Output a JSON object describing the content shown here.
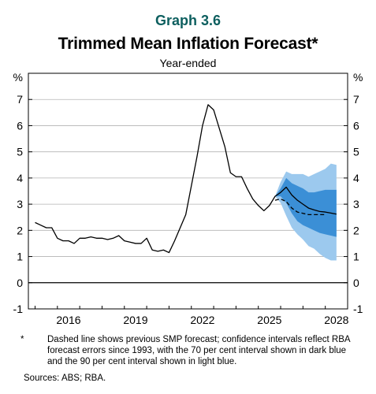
{
  "header": {
    "graph_number": "Graph 3.6",
    "title": "Trimmed Mean Inflation Forecast*",
    "subtitle": "Year-ended"
  },
  "footnote": {
    "mark": "*",
    "text": "Dashed line shows previous SMP forecast; confidence intervals reflect RBA forecast errors since 1993, with the 70 per cent interval shown in dark blue and the 90 per cent interval shown in light blue."
  },
  "sources": "Sources: ABS; RBA.",
  "colors": {
    "line": "#000000",
    "band_70": "#3b8fd6",
    "band_90": "#9cc9ee",
    "grid": "#b3b3b3"
  },
  "chart_data": {
    "type": "line",
    "ylabel_left": "%",
    "ylabel_right": "%",
    "ylim": [
      -1,
      8
    ],
    "yticks": [
      -1,
      0,
      1,
      2,
      3,
      4,
      5,
      6,
      7
    ],
    "xlim": [
      2014.7,
      2029.0
    ],
    "xticks": [
      2016,
      2019,
      2022,
      2025,
      2028
    ],
    "grid": true,
    "series": [
      {
        "style": "solid",
        "x": [
          2015.0,
          2015.25,
          2015.5,
          2015.75,
          2016.0,
          2016.25,
          2016.5,
          2016.75,
          2017.0,
          2017.25,
          2017.5,
          2017.75,
          2018.0,
          2018.25,
          2018.5,
          2018.75,
          2019.0,
          2019.25,
          2019.5,
          2019.75,
          2020.0,
          2020.25,
          2020.5,
          2020.75,
          2021.0,
          2021.25,
          2021.5,
          2021.75,
          2022.0,
          2022.25,
          2022.5,
          2022.75,
          2023.0,
          2023.25,
          2023.5,
          2023.75,
          2024.0,
          2024.25,
          2024.5,
          2024.75,
          2025.0,
          2025.25,
          2025.5,
          2025.75,
          2026.0,
          2026.25,
          2026.5,
          2026.75,
          2027.0,
          2027.25,
          2027.5,
          2027.75,
          2028.0,
          2028.25,
          2028.5
        ],
        "y": [
          2.3,
          2.2,
          2.1,
          2.1,
          1.7,
          1.6,
          1.6,
          1.5,
          1.7,
          1.7,
          1.75,
          1.7,
          1.7,
          1.65,
          1.7,
          1.8,
          1.6,
          1.55,
          1.5,
          1.5,
          1.7,
          1.25,
          1.2,
          1.25,
          1.15,
          1.6,
          2.1,
          2.6,
          3.7,
          4.8,
          6.0,
          6.8,
          6.6,
          5.9,
          5.2,
          4.2,
          4.05,
          4.05,
          3.6,
          3.2,
          2.95,
          2.75,
          2.95,
          3.3,
          3.45,
          3.65,
          3.35,
          3.15,
          3.0,
          2.85,
          2.78,
          2.72,
          2.7,
          2.66,
          2.62
        ]
      },
      {
        "style": "dashed",
        "x": [
          2025.75,
          2026.0,
          2026.25,
          2026.5,
          2026.75,
          2027.0,
          2027.25,
          2027.5,
          2027.75,
          2028.0
        ],
        "y": [
          3.15,
          3.2,
          3.1,
          2.85,
          2.7,
          2.65,
          2.6,
          2.6,
          2.6,
          2.6
        ]
      }
    ],
    "bands": {
      "x": [
        2025.75,
        2026.0,
        2026.25,
        2026.5,
        2026.75,
        2027.0,
        2027.25,
        2027.5,
        2027.75,
        2028.0,
        2028.25,
        2028.5
      ],
      "interval_90_upper": [
        3.3,
        3.85,
        4.25,
        4.15,
        4.15,
        4.15,
        4.05,
        4.15,
        4.25,
        4.35,
        4.55,
        4.5
      ],
      "interval_90_lower": [
        3.3,
        3.05,
        2.55,
        2.1,
        1.85,
        1.65,
        1.4,
        1.3,
        1.1,
        0.95,
        0.85,
        0.85
      ],
      "interval_70_upper": [
        3.3,
        3.6,
        4.0,
        3.8,
        3.7,
        3.6,
        3.45,
        3.45,
        3.5,
        3.55,
        3.55,
        3.55
      ],
      "interval_70_lower": [
        3.3,
        3.3,
        3.05,
        2.65,
        2.35,
        2.2,
        2.1,
        2.0,
        1.9,
        1.85,
        1.8,
        1.75
      ]
    }
  }
}
